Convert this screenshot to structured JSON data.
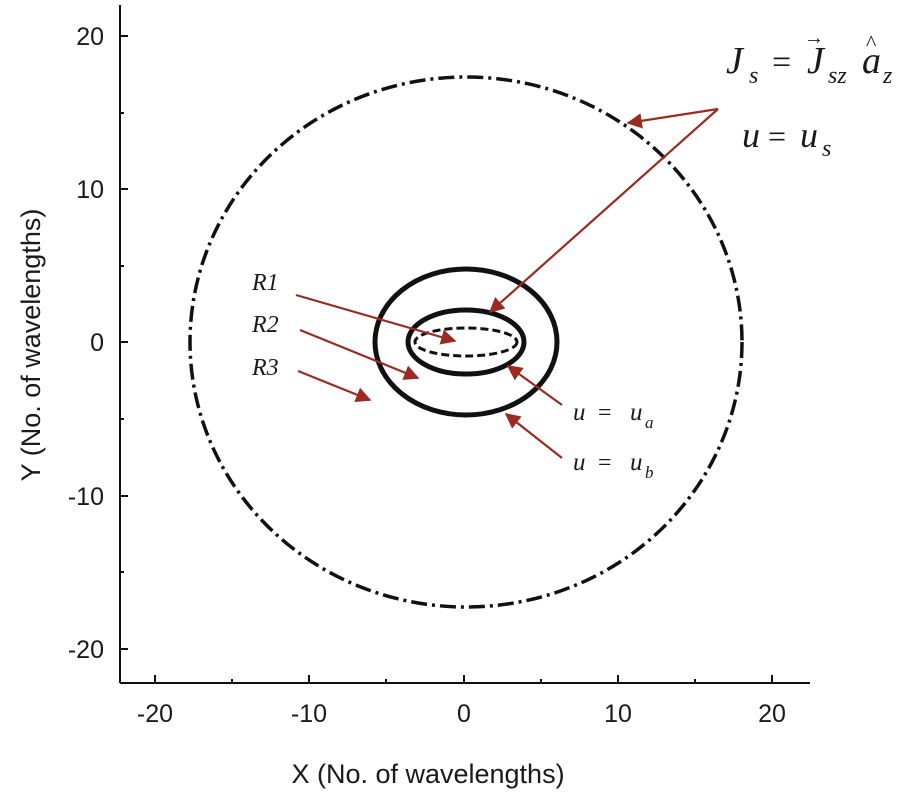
{
  "axes": {
    "x_label": "X (No. of wavelengths)",
    "y_label": "Y (No. of wavelengths)",
    "x_ticks": [
      "-20",
      "-10",
      "0",
      "10",
      "20"
    ],
    "y_ticks": [
      "20",
      "10",
      "0",
      "-10",
      "-20"
    ],
    "x_range": [
      -22,
      22
    ],
    "y_range": [
      -22,
      22
    ]
  },
  "regions": {
    "r1": "R1",
    "r2": "R2",
    "r3": "R3"
  },
  "labels": {
    "current_sym": "J",
    "current_sub": "s",
    "current_eq": "=",
    "current_vec": "J",
    "current_vec_sub": "sz",
    "current_unit": "a",
    "current_unit_sub": "z",
    "us_u": "u",
    "us_eq": "=",
    "us_val": "u",
    "us_sub": "s",
    "ua_u": "u",
    "ua_eq": "=",
    "ua_val": "u",
    "ua_sub": "a",
    "ub_u": "u",
    "ub_eq": "=",
    "ub_val": "u",
    "ub_sub": "b"
  },
  "colors": {
    "arrow": "#9b2a22",
    "curve": "#111111"
  }
}
